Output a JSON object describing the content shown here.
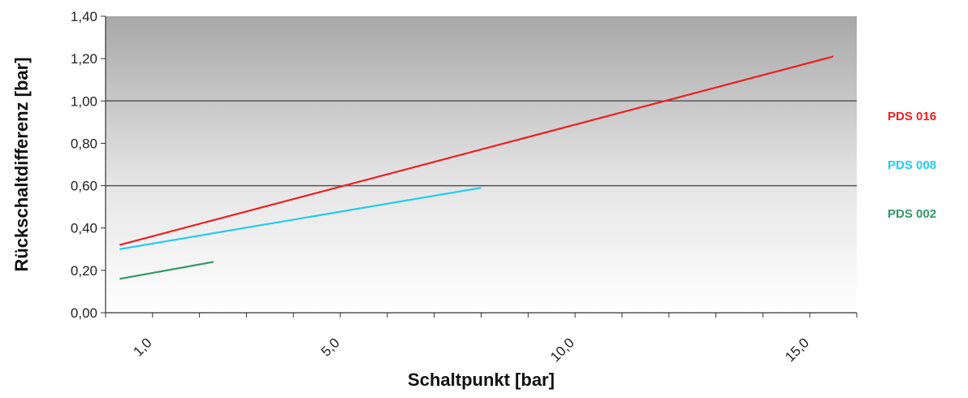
{
  "chart_data": {
    "type": "line",
    "title": "",
    "xlabel": "Schaltpunkt [bar]",
    "ylabel": "Rückschaltdifferenz [bar]",
    "xlim": [
      0.0,
      16.0
    ],
    "ylim": [
      0.0,
      1.4
    ],
    "grid": "horizontal",
    "legend_position": "right",
    "y_ticks": [
      {
        "value": 0.0,
        "label": "0,00"
      },
      {
        "value": 0.2,
        "label": "0,20"
      },
      {
        "value": 0.4,
        "label": "0,40"
      },
      {
        "value": 0.6,
        "label": "0,60"
      },
      {
        "value": 0.8,
        "label": "0,80"
      },
      {
        "value": 1.0,
        "label": "1,00"
      },
      {
        "value": 1.2,
        "label": "1,20"
      },
      {
        "value": 1.4,
        "label": "1,40"
      }
    ],
    "y_gridlines": [
      0.6,
      1.0
    ],
    "x_ticks": [
      {
        "value": 1.0,
        "label": "1,0"
      },
      {
        "value": 5.0,
        "label": "5,0"
      },
      {
        "value": 10.0,
        "label": "10,0"
      },
      {
        "value": 15.0,
        "label": "15,0"
      }
    ],
    "x_minor_ticks": [
      0.0,
      1.0,
      2.0,
      3.0,
      4.0,
      5.0,
      6.0,
      7.0,
      8.0,
      9.0,
      10.0,
      11.0,
      12.0,
      13.0,
      14.0,
      15.0,
      16.0
    ],
    "series": [
      {
        "name": "PDS 016",
        "color": "#ee2020",
        "x": [
          0.3,
          15.5
        ],
        "y": [
          0.32,
          1.21
        ]
      },
      {
        "name": "PDS 008",
        "color": "#22ccee",
        "x": [
          0.3,
          8.0
        ],
        "y": [
          0.3,
          0.59
        ]
      },
      {
        "name": "PDS 002",
        "color": "#339966",
        "x": [
          0.3,
          2.3
        ],
        "y": [
          0.16,
          0.24
        ]
      }
    ]
  }
}
